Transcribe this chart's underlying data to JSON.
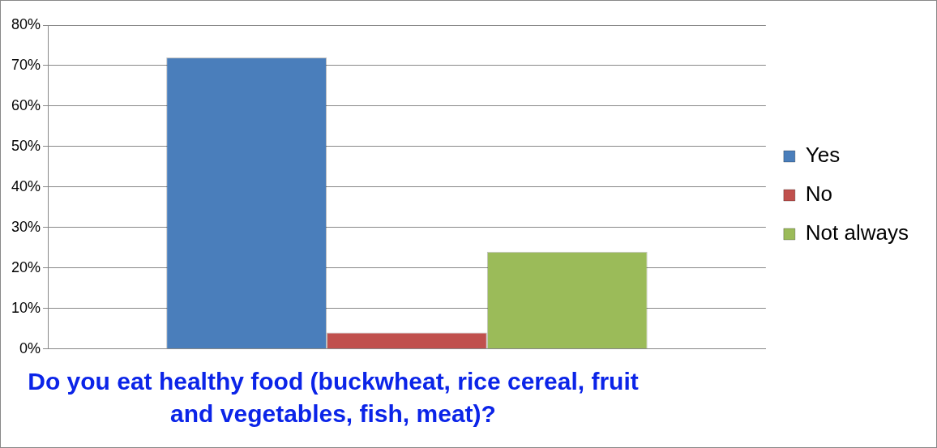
{
  "chart_data": {
    "type": "bar",
    "title": "Do you eat healthy food (buckwheat, rice cereal, fruit and vegetables, fish, meat)?",
    "categories": [
      null
    ],
    "series": [
      {
        "name": "Yes",
        "color": "#4a7ebb",
        "values": [
          72
        ]
      },
      {
        "name": "No",
        "color": "#c0504d",
        "values": [
          4
        ]
      },
      {
        "name": "Not always",
        "color": "#9bbb59",
        "values": [
          24
        ]
      }
    ],
    "ylim": [
      0,
      80
    ],
    "yticks": [
      {
        "value": 0,
        "label": "0%"
      },
      {
        "value": 10,
        "label": "10%"
      },
      {
        "value": 20,
        "label": "20%"
      },
      {
        "value": 30,
        "label": "30%"
      },
      {
        "value": 40,
        "label": "40%"
      },
      {
        "value": 50,
        "label": "50%"
      },
      {
        "value": 60,
        "label": "60%"
      },
      {
        "value": 70,
        "label": "70%"
      },
      {
        "value": 80,
        "label": "80%"
      }
    ],
    "grid": "y",
    "legend": "right"
  }
}
